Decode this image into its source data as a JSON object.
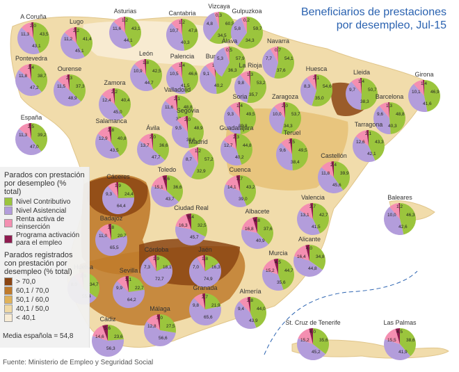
{
  "title_line1": "Beneficiarios de prestaciones",
  "title_line2": "por desempleo, Jul-15",
  "legend": {
    "heading1": "Parados con prestación por desempleo (% total)",
    "pie_items": [
      {
        "label": "Nivel Contributivo",
        "color": "#9bc53d"
      },
      {
        "label": "Nivel Asistencial",
        "color": "#b39ddb"
      },
      {
        "label": "Renta activa de reinserción",
        "color": "#f48fb1"
      },
      {
        "label": "Programa activación para el empleo",
        "color": "#8e1a4f"
      }
    ],
    "heading2": "Parados registrados con prestación por desempleo (% total)",
    "ranges": [
      {
        "label": "> 70,0",
        "color": "#8b4513"
      },
      {
        "label": "60,1 / 70,0",
        "color": "#c07b2c"
      },
      {
        "label": "50,1 / 60,0",
        "color": "#e0b25a"
      },
      {
        "label": "40,1 / 50,0",
        "color": "#f0d9a5"
      },
      {
        "label": "< 40,1",
        "color": "#f8ecd5"
      }
    ],
    "median": "Media española = 54,8"
  },
  "source": "Fuente: Ministerio de Empleo y Seguridad Social",
  "colors": {
    "contrib": "#9bc53d",
    "asist": "#b39ddb",
    "renta": "#f48fb1",
    "prog": "#8e1a4f",
    "sea": "#ffffff"
  },
  "regions": [
    {
      "name": "A Coruña",
      "c": 43.5,
      "a": 43.1,
      "r": 11.3,
      "p": 2.0,
      "cls": 3
    },
    {
      "name": "Lugo",
      "c": 41.4,
      "a": 45.1,
      "r": 11.2,
      "p": 2.2,
      "cls": 3
    },
    {
      "name": "Asturias",
      "c": 43.1,
      "a": 44.1,
      "r": 11.6,
      "p": 1.2,
      "cls": 3
    },
    {
      "name": "Cantabria",
      "c": 47.8,
      "a": 40.3,
      "r": 10.7,
      "p": 1.2,
      "cls": 3
    },
    {
      "name": "Vizcaya",
      "c": 60.5,
      "a": 34.5,
      "r": 4.8,
      "p": 0.3,
      "cls": 4
    },
    {
      "name": "Gulpuzkoa",
      "c": 59.7,
      "a": 34.3,
      "r": 5.8,
      "p": 0.2,
      "cls": 4
    },
    {
      "name": "Pontevedra",
      "c": 38.7,
      "a": 47.2,
      "r": 11.8,
      "p": 2.4,
      "cls": 3
    },
    {
      "name": "Ourense",
      "c": 37.3,
      "a": 48.9,
      "r": 11.5,
      "p": 2.3,
      "cls": 3
    },
    {
      "name": "León",
      "c": 42.5,
      "a": 44.7,
      "r": 10.9,
      "p": 1.8,
      "cls": 3
    },
    {
      "name": "Palencia",
      "c": 46.6,
      "a": 41.5,
      "r": 10.5,
      "p": 1.4,
      "cls": 3
    },
    {
      "name": "Burgos",
      "c": 48.9,
      "a": 40.2,
      "r": 9.1,
      "p": 1.7,
      "cls": 3
    },
    {
      "name": "Álava",
      "c": 57.9,
      "a": 36.3,
      "r": 5.3,
      "p": 0.5,
      "cls": 4
    },
    {
      "name": "Navarra",
      "c": 54.1,
      "a": 37.6,
      "r": 7.7,
      "p": 0.7,
      "cls": 4
    },
    {
      "name": "La Rioja",
      "c": 53.2,
      "a": 35.7,
      "r": 9.8,
      "p": 1.3,
      "cls": 3
    },
    {
      "name": "Huesca",
      "c": 54.6,
      "a": 35.0,
      "r": 8.3,
      "p": 2.1,
      "cls": 3
    },
    {
      "name": "Lleida",
      "c": 50.7,
      "a": 38.3,
      "r": 9.7,
      "p": 1.4,
      "cls": 1
    },
    {
      "name": "Girona",
      "c": 46.9,
      "a": 41.6,
      "r": 10.1,
      "p": 1.4,
      "cls": 3
    },
    {
      "name": "Zamora",
      "c": 40.4,
      "a": 45.0,
      "r": 12.4,
      "p": 2.2,
      "cls": 3
    },
    {
      "name": "Valladolid",
      "c": 48.8,
      "a": 37.5,
      "r": 11.6,
      "p": 2.1,
      "cls": 3
    },
    {
      "name": "Soria",
      "c": 49.5,
      "a": 39.8,
      "r": 9.3,
      "p": 1.4,
      "cls": 3
    },
    {
      "name": "Zaragoza",
      "c": 53.7,
      "a": 34.3,
      "r": 10.0,
      "p": 2.0,
      "cls": 3
    },
    {
      "name": "Barcelona",
      "c": 48.8,
      "a": 40.3,
      "r": 9.6,
      "p": 1.3,
      "cls": 3
    },
    {
      "name": "España",
      "c": 39.2,
      "a": 47.0,
      "r": 11.3,
      "p": 2.5,
      "cls": 0
    },
    {
      "name": "Salamanca",
      "c": 40.8,
      "a": 43.5,
      "r": 12.9,
      "p": 2.8,
      "cls": 3
    },
    {
      "name": "Ávila",
      "c": 36.6,
      "a": 47.7,
      "r": 13.7,
      "p": 2.0,
      "cls": 3
    },
    {
      "name": "Segovia",
      "c": 48.9,
      "a": 39.6,
      "r": 9.5,
      "p": 2.0,
      "cls": 3
    },
    {
      "name": "Guadalajara",
      "c": 44.8,
      "a": 40.2,
      "r": 12.7,
      "p": 2.3,
      "cls": 3
    },
    {
      "name": "Teruel",
      "c": 49.5,
      "a": 38.4,
      "r": 9.6,
      "p": 2.5,
      "cls": 3
    },
    {
      "name": "Tarragona",
      "c": 43.3,
      "a": 42.1,
      "r": 12.6,
      "p": 2.1,
      "cls": 3
    },
    {
      "name": "Madrid",
      "c": 57.2,
      "a": 32.9,
      "r": 8.7,
      "p": 1.2,
      "cls": 4
    },
    {
      "name": "Cáceres",
      "c": 24.4,
      "a": 64.4,
      "r": 9.3,
      "p": 1.9,
      "cls": 1
    },
    {
      "name": "Toledo",
      "c": 36.6,
      "a": 43.7,
      "r": 15.1,
      "p": 4.6,
      "cls": 3
    },
    {
      "name": "Cuenca",
      "c": 43.2,
      "a": 39.0,
      "r": 14.1,
      "p": 3.7,
      "cls": 3
    },
    {
      "name": "Castellón",
      "c": 39.9,
      "a": 45.6,
      "r": 11.8,
      "p": 2.4,
      "cls": 3
    },
    {
      "name": "Valencia",
      "c": 42.7,
      "a": 41.5,
      "r": 13.1,
      "p": 2.7,
      "cls": 3
    },
    {
      "name": "Baleares",
      "c": 46.3,
      "a": 42.6,
      "r": 10.0,
      "p": 1.2,
      "cls": 4
    },
    {
      "name": "Badajoz",
      "c": 20.7,
      "a": 65.5,
      "r": 11.0,
      "p": 2.8,
      "cls": 1
    },
    {
      "name": "Ciudad Real",
      "c": 32.5,
      "a": 45.7,
      "r": 16.3,
      "p": 5.4,
      "cls": 3
    },
    {
      "name": "Albacete",
      "c": 37.6,
      "a": 40.9,
      "r": 16.8,
      "p": 4.8,
      "cls": 3
    },
    {
      "name": "Alicante",
      "c": 34.8,
      "a": 44.8,
      "r": 16.4,
      "p": 4.0,
      "cls": 3
    },
    {
      "name": "Murcia",
      "c": 44.7,
      "a": 35.6,
      "r": 15.2,
      "p": 4.5,
      "cls": 3
    },
    {
      "name": "Córdoba",
      "c": 18.1,
      "a": 72.7,
      "r": 7.3,
      "p": 1.9,
      "cls": 1
    },
    {
      "name": "Jaén",
      "c": 16.3,
      "a": 74.9,
      "r": 7.0,
      "p": 1.8,
      "cls": 1
    },
    {
      "name": "Huelva",
      "c": 34.7,
      "a": 55.4,
      "r": 8.0,
      "p": 1.9,
      "cls": 2
    },
    {
      "name": "Sevilla",
      "c": 22.7,
      "a": 64.2,
      "r": 9.9,
      "p": 3.1,
      "cls": 2
    },
    {
      "name": "Granada",
      "c": 21.9,
      "a": 65.6,
      "r": 9.8,
      "p": 2.7,
      "cls": 2
    },
    {
      "name": "Almería",
      "c": 44.0,
      "a": 43.9,
      "r": 9.4,
      "p": 2.8,
      "cls": 3
    },
    {
      "name": "Málaga",
      "c": 27.5,
      "a": 56.6,
      "r": 12.8,
      "p": 3.0,
      "cls": 2
    },
    {
      "name": "Cádiz",
      "c": 23.6,
      "a": 56.3,
      "r": 14.6,
      "p": 5.6,
      "cls": 2
    },
    {
      "name": "St. Cruz de Tenerife",
      "c": 35.6,
      "a": 45.2,
      "r": 15.2,
      "p": 4.0,
      "cls": 3
    },
    {
      "name": "Las Palmas",
      "c": 38.6,
      "a": 41.9,
      "r": 15.5,
      "p": 4.5,
      "cls": 3
    }
  ]
}
